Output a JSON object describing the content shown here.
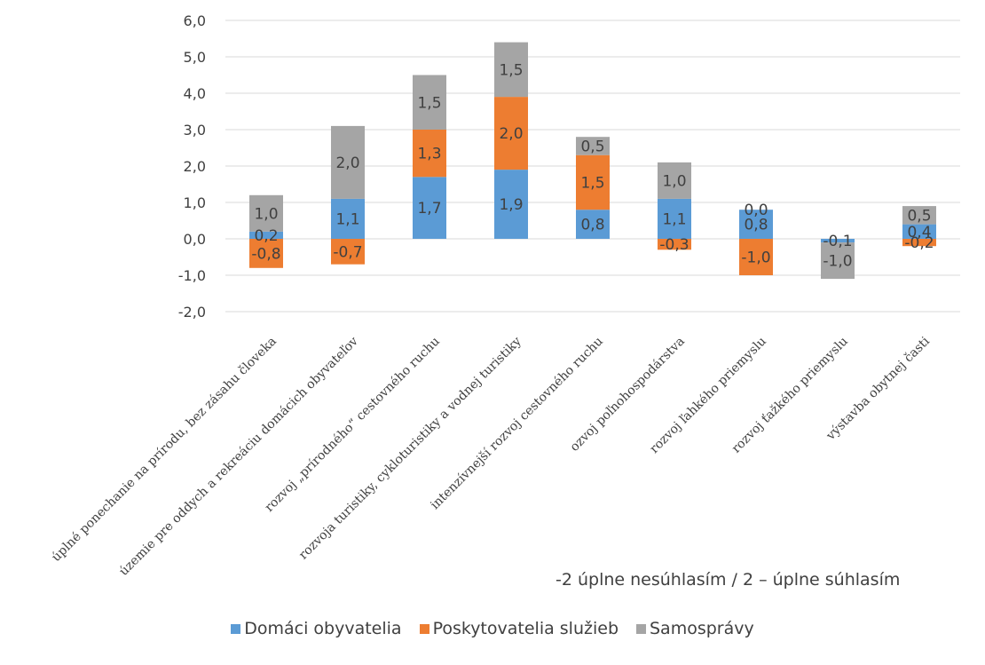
{
  "chart_data": {
    "type": "bar",
    "stacked": true,
    "categories": [
      "úplné ponechanie na prírodu, bez zásahu človeka",
      "územie pre oddych a rekreáciu domácich obyvateľov",
      "rozvoj „prírodného“ cestovného ruchu",
      "rozvoja turistiky, cykloturistiky a vodnej turistiky",
      "intenzívnejší rozvoj cestovného ruchu",
      "ozvoj poľnohospodárstva",
      "rozvoj ľahkého priemyslu",
      "rozvoj ťažkého priemyslu",
      "výstavba obytnej časti"
    ],
    "series": [
      {
        "name": "Domáci obyvatelia",
        "color": "#5b9bd5",
        "values": [
          0.2,
          1.1,
          1.7,
          1.9,
          0.8,
          1.1,
          0.8,
          -0.1,
          0.4
        ],
        "labels": [
          "0,2",
          "1,1",
          "1,7",
          "1,9",
          "0,8",
          "1,1",
          "0,8",
          "-0,1",
          "0,4"
        ]
      },
      {
        "name": "Poskytovatelia služieb",
        "color": "#ed7d31",
        "values": [
          -0.8,
          -0.7,
          1.3,
          2.0,
          1.5,
          -0.3,
          -1.0,
          0.0,
          -0.2
        ],
        "labels": [
          "-0,8",
          "-0,7",
          "1,3",
          "2,0",
          "1,5",
          "-0,3",
          "-1,0",
          "",
          "-0,2"
        ]
      },
      {
        "name": "Samosprávy",
        "color": "#a5a5a5",
        "values": [
          1.0,
          2.0,
          1.5,
          1.5,
          0.5,
          1.0,
          0.0,
          -1.0,
          0.5
        ],
        "labels": [
          "1,0",
          "2,0",
          "1,5",
          "1,5",
          "0,5",
          "1,0",
          "0,0",
          "-1,0",
          "0,5"
        ]
      }
    ],
    "yticks": [
      "6,0",
      "5,0",
      "4,0",
      "3,0",
      "2,0",
      "1,0",
      "0,0",
      "-1,0",
      "-2,0"
    ],
    "ylim": [
      -2,
      6
    ],
    "grid": true,
    "legend_position": "bottom",
    "note": "-2 úplne nesúhlasím / 2 – úplne súhlasím"
  }
}
